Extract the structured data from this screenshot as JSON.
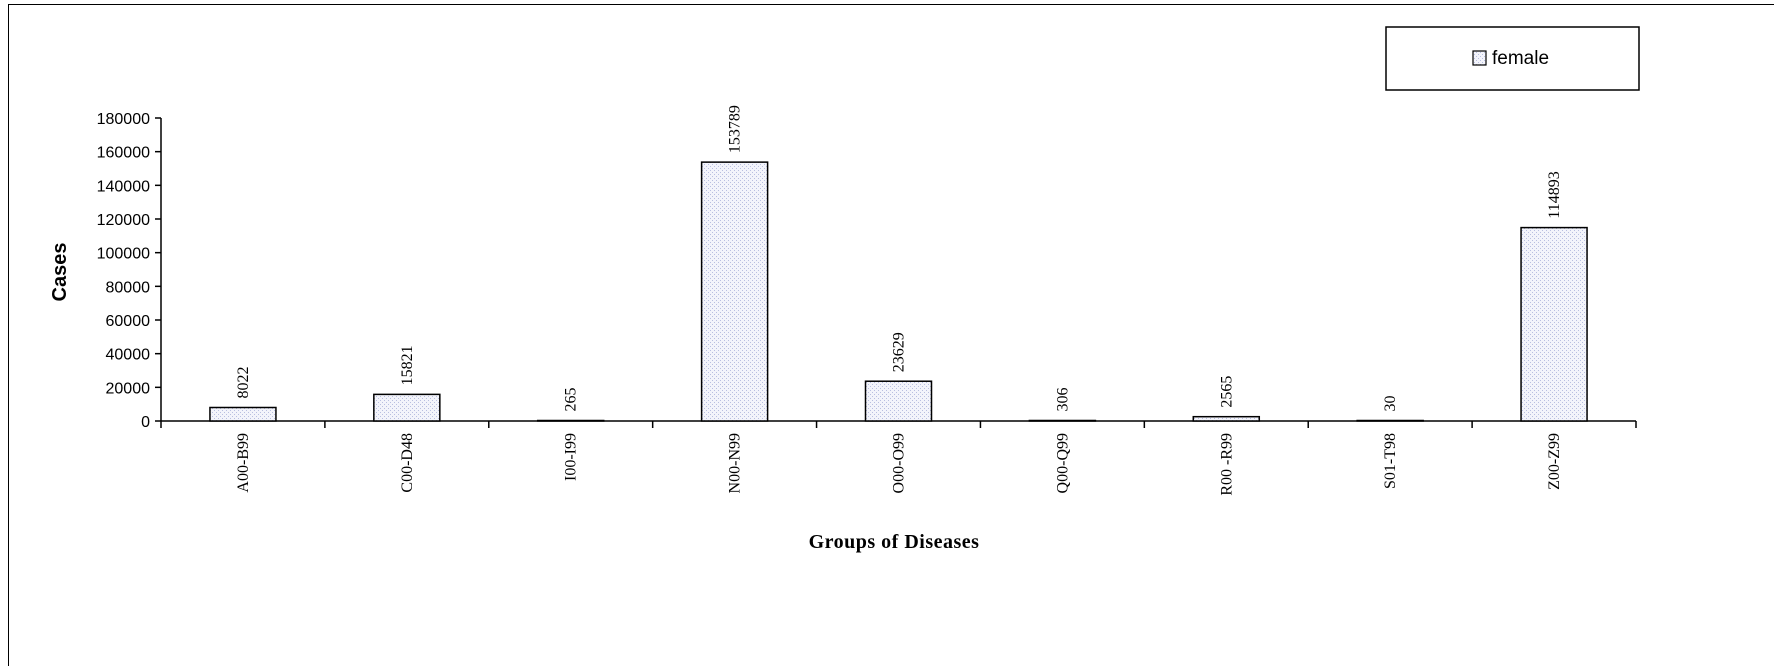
{
  "chart_data": {
    "type": "bar",
    "title": "",
    "xlabel": "Groups of Diseases",
    "ylabel": "Cases",
    "categories": [
      "A00-B99",
      "C00-D48",
      "I00-I99",
      "N00-N99",
      "O00-O99",
      "Q00-Q99",
      "R00 -R99",
      "S01-T98",
      "Z00-Z99"
    ],
    "series": [
      {
        "name": "female",
        "values": [
          8022,
          15821,
          265,
          153789,
          23629,
          306,
          2565,
          30,
          114893
        ]
      }
    ],
    "ylim": [
      0,
      180000
    ],
    "yticks": [
      0,
      20000,
      40000,
      60000,
      80000,
      100000,
      120000,
      140000,
      160000,
      180000
    ],
    "data_labels": [
      "8022",
      "15821",
      "265",
      "153789",
      "23629",
      "306",
      "2565",
      "30",
      "114893"
    ],
    "legend_position": "top-right",
    "grid": false,
    "colors": {
      "bar_fill": "#e8ebf8",
      "bar_stroke": "#000000",
      "axis": "#000000"
    }
  }
}
